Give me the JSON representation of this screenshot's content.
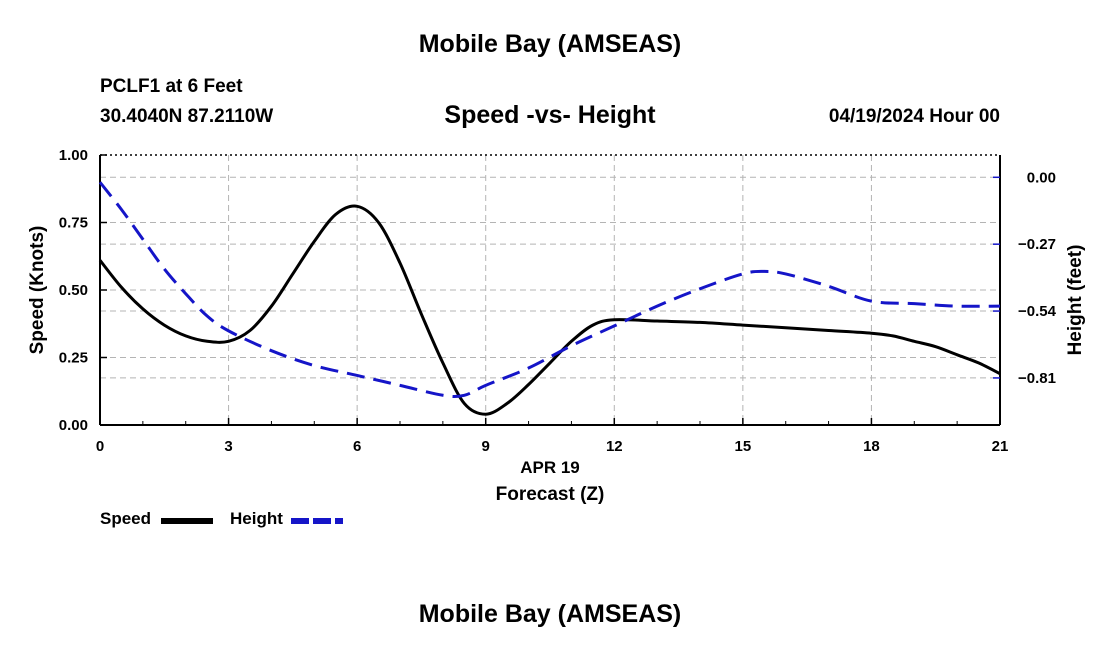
{
  "header": {
    "title": "Mobile Bay (AMSEAS)",
    "station": "PCLF1 at 6 Feet",
    "coords": "30.4040N  87.2110W",
    "subtitle": "Speed -vs- Height",
    "datetime": "04/19/2024 Hour 00"
  },
  "footer": {
    "title": "Mobile Bay (AMSEAS)"
  },
  "legend": {
    "speed_label": "Speed",
    "height_label": "Height"
  },
  "colors": {
    "speed": "#000000",
    "height": "#1515c8",
    "grid": "#b4b4b4"
  },
  "chart_data": {
    "type": "line",
    "title": "Speed -vs- Height",
    "xlabel": "Forecast (Z)",
    "xsublabel": "APR 19",
    "ylabel": "Speed (Knots)",
    "y2label": "Height (feet)",
    "xlim": [
      0,
      21
    ],
    "ylim": [
      0,
      1
    ],
    "y2lim": [
      -1.0,
      0.09
    ],
    "x_ticks": [
      0,
      3,
      6,
      9,
      12,
      15,
      18,
      21
    ],
    "x_tick_labels": [
      "0",
      "3",
      "6",
      "9",
      "12",
      "15",
      "18",
      "21"
    ],
    "y_ticks": [
      0,
      0.25,
      0.5,
      0.75,
      1.0
    ],
    "y_tick_labels": [
      "0.00",
      "0.25",
      "0.50",
      "0.75",
      "1.00"
    ],
    "y2_ticks": [
      0,
      -0.27,
      -0.54,
      -0.81
    ],
    "y2_tick_labels": [
      "0.00",
      "−0.27",
      "−0.54",
      "−0.81"
    ],
    "grid": true,
    "legend_position": "bottom-left",
    "series": [
      {
        "name": "Speed",
        "axis": "left",
        "style": "solid",
        "x": [
          0,
          0.5,
          1,
          1.5,
          2,
          2.5,
          3,
          3.5,
          4,
          4.5,
          5,
          5.5,
          6,
          6.5,
          7,
          7.5,
          8,
          8.5,
          9,
          9.5,
          10,
          10.5,
          11,
          11.5,
          12,
          13,
          14,
          15,
          16,
          17,
          18,
          18.5,
          19,
          19.5,
          20,
          20.5,
          21
        ],
        "values": [
          0.61,
          0.51,
          0.43,
          0.37,
          0.33,
          0.31,
          0.31,
          0.35,
          0.44,
          0.56,
          0.68,
          0.78,
          0.81,
          0.75,
          0.6,
          0.41,
          0.23,
          0.08,
          0.04,
          0.08,
          0.15,
          0.23,
          0.31,
          0.37,
          0.39,
          0.385,
          0.38,
          0.37,
          0.36,
          0.35,
          0.34,
          0.33,
          0.31,
          0.29,
          0.26,
          0.23,
          0.19
        ]
      },
      {
        "name": "Height",
        "axis": "right",
        "style": "dashed",
        "x": [
          0,
          0.5,
          1,
          1.5,
          2,
          2.5,
          3,
          4,
          5,
          6,
          7,
          8,
          8.5,
          9,
          10,
          11,
          12,
          13,
          14,
          15,
          15.5,
          16,
          17,
          18,
          19,
          20,
          21
        ],
        "values": [
          -0.02,
          -0.13,
          -0.25,
          -0.37,
          -0.47,
          -0.56,
          -0.62,
          -0.7,
          -0.76,
          -0.8,
          -0.84,
          -0.88,
          -0.88,
          -0.84,
          -0.77,
          -0.68,
          -0.6,
          -0.52,
          -0.45,
          -0.39,
          -0.38,
          -0.39,
          -0.44,
          -0.5,
          -0.51,
          -0.52,
          -0.52
        ]
      }
    ]
  }
}
